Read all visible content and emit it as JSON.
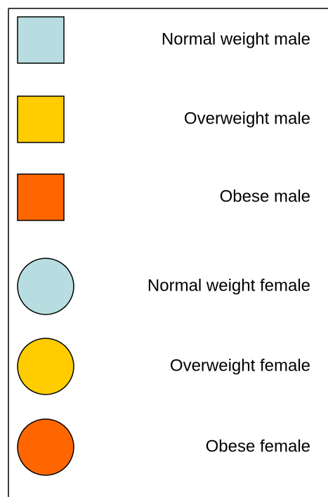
{
  "legend": {
    "items": [
      {
        "label": "Normal weight male",
        "shape": "square",
        "color": "#b7dde0"
      },
      {
        "label": "Overweight male",
        "shape": "square",
        "color": "#ffcc00"
      },
      {
        "label": "Obese male",
        "shape": "square",
        "color": "#ff6600"
      },
      {
        "label": "Normal weight female",
        "shape": "circle",
        "color": "#b7dde0"
      },
      {
        "label": "Overweight female",
        "shape": "circle",
        "color": "#ffcc00"
      },
      {
        "label": "Obese female",
        "shape": "circle",
        "color": "#ff6600"
      }
    ]
  }
}
